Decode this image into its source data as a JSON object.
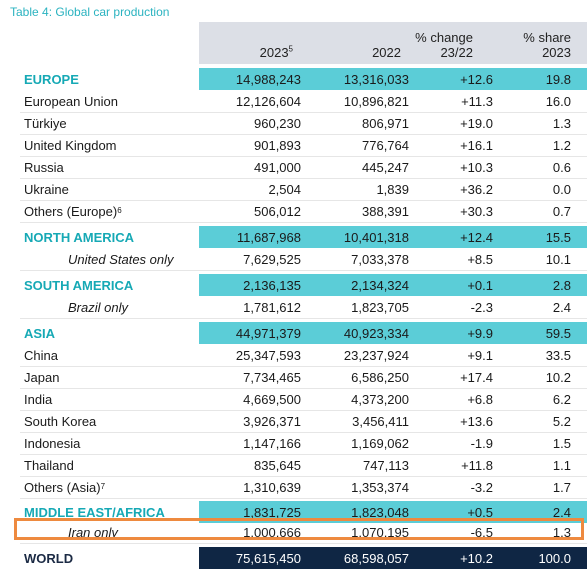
{
  "title": "Table 4: Global car production",
  "columns": {
    "c2023": "2023",
    "c2023_note": "5",
    "c2022": "2022",
    "change_l1": "% change",
    "change_l2": "23/22",
    "share_l1": "% share",
    "share_l2": "2023"
  },
  "rows": [
    {
      "label": "EUROPE",
      "v2023": "14,988,243",
      "v2022": "13,316,033",
      "change": "+12.6",
      "share": "19.8",
      "style": "region"
    },
    {
      "label": "European Union",
      "v2023": "12,126,604",
      "v2022": "10,896,821",
      "change": "+11.3",
      "share": "16.0"
    },
    {
      "label": "Türkiye",
      "v2023": "960,230",
      "v2022": "806,971",
      "change": "+19.0",
      "share": "1.3"
    },
    {
      "label": "United Kingdom",
      "v2023": "901,893",
      "v2022": "776,764",
      "change": "+16.1",
      "share": "1.2"
    },
    {
      "label": "Russia",
      "v2023": "491,000",
      "v2022": "445,247",
      "change": "+10.3",
      "share": "0.6"
    },
    {
      "label": "Ukraine",
      "v2023": "2,504",
      "v2022": "1,839",
      "change": "+36.2",
      "share": "0.0"
    },
    {
      "label": "Others (Europe)",
      "note": "6",
      "v2023": "506,012",
      "v2022": "388,391",
      "change": "+30.3",
      "share": "0.7"
    },
    {
      "label": "NORTH AMERICA",
      "v2023": "11,687,968",
      "v2022": "10,401,318",
      "change": "+12.4",
      "share": "15.5",
      "style": "region"
    },
    {
      "label": "United States only",
      "v2023": "7,629,525",
      "v2022": "7,033,378",
      "change": "+8.5",
      "share": "10.1",
      "style": "indent"
    },
    {
      "label": "SOUTH AMERICA",
      "v2023": "2,136,135",
      "v2022": "2,134,324",
      "change": "+0.1",
      "share": "2.8",
      "style": "region"
    },
    {
      "label": "Brazil only",
      "v2023": "1,781,612",
      "v2022": "1,823,705",
      "change": "-2.3",
      "share": "2.4",
      "style": "indent"
    },
    {
      "label": "ASIA",
      "v2023": "44,971,379",
      "v2022": "40,923,334",
      "change": "+9.9",
      "share": "59.5",
      "style": "region"
    },
    {
      "label": "China",
      "v2023": "25,347,593",
      "v2022": "23,237,924",
      "change": "+9.1",
      "share": "33.5"
    },
    {
      "label": "Japan",
      "v2023": "7,734,465",
      "v2022": "6,586,250",
      "change": "+17.4",
      "share": "10.2"
    },
    {
      "label": "India",
      "v2023": "4,669,500",
      "v2022": "4,373,200",
      "change": "+6.8",
      "share": "6.2"
    },
    {
      "label": "South Korea",
      "v2023": "3,926,371",
      "v2022": "3,456,411",
      "change": "+13.6",
      "share": "5.2"
    },
    {
      "label": "Indonesia",
      "v2023": "1,147,166",
      "v2022": "1,169,062",
      "change": "-1.9",
      "share": "1.5"
    },
    {
      "label": "Thailand",
      "v2023": "835,645",
      "v2022": "747,113",
      "change": "+11.8",
      "share": "1.1"
    },
    {
      "label": "Others (Asia)",
      "note": "7",
      "v2023": "1,310,639",
      "v2022": "1,353,374",
      "change": "-3.2",
      "share": "1.7"
    },
    {
      "label": "MIDDLE EAST/AFRICA",
      "v2023": "1,831,725",
      "v2022": "1,823,048",
      "change": "+0.5",
      "share": "2.4",
      "style": "region"
    },
    {
      "label": "Iran only",
      "v2023": "1,000,666",
      "v2022": "1,070,195",
      "change": "-6.5",
      "share": "1.3",
      "style": "indent"
    },
    {
      "label": "WORLD",
      "v2023": "75,615,450",
      "v2022": "68,598,057",
      "change": "+10.2",
      "share": "100.0",
      "style": "world"
    }
  ],
  "highlight_color": "#ee8a3f",
  "accent_color": "#5bcdd7",
  "world_color": "#0f2644"
}
